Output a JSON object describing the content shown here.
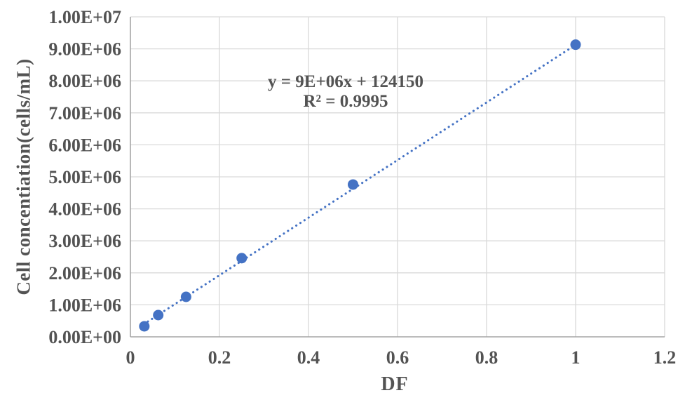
{
  "chart_data": {
    "type": "scatter",
    "title": "",
    "xlabel": "DF",
    "ylabel": "Cell concentiation(cells/mL)",
    "xlim": [
      0,
      1.2
    ],
    "ylim": [
      0,
      10000000
    ],
    "x_ticks": [
      0,
      0.2,
      0.4,
      0.6,
      0.8,
      1,
      1.2
    ],
    "x_tick_labels": [
      "0",
      "0.2",
      "0.4",
      "0.6",
      "0.8",
      "1",
      "1.2"
    ],
    "y_ticks": [
      0,
      1000000,
      2000000,
      3000000,
      4000000,
      5000000,
      6000000,
      7000000,
      8000000,
      9000000,
      10000000
    ],
    "y_tick_labels": [
      "0.00E+00",
      "1.00E+06",
      "2.00E+06",
      "3.00E+06",
      "4.00E+06",
      "5.00E+06",
      "6.00E+06",
      "7.00E+06",
      "8.00E+06",
      "9.00E+06",
      "1.00E+07"
    ],
    "points": [
      {
        "x": 0.03125,
        "y": 330000
      },
      {
        "x": 0.0625,
        "y": 680000
      },
      {
        "x": 0.125,
        "y": 1250000
      },
      {
        "x": 0.25,
        "y": 2460000
      },
      {
        "x": 0.5,
        "y": 4760000
      },
      {
        "x": 1.0,
        "y": 9130000
      }
    ],
    "trendline": {
      "slope": 9000000,
      "intercept": 124150,
      "x_start": 0.03,
      "x_end": 1.0,
      "style": "dotted"
    },
    "annotation": {
      "equation": "y = 9E+06x + 124150",
      "r_squared": "R² = 0.9995"
    },
    "legend": "none",
    "grid": true,
    "colors": {
      "marker": "#4472C4",
      "trendline": "#4472C4",
      "gridline": "#D9D9D9",
      "axis": "#A6A6A6",
      "text": "#535353",
      "background": "#FFFFFF"
    }
  }
}
